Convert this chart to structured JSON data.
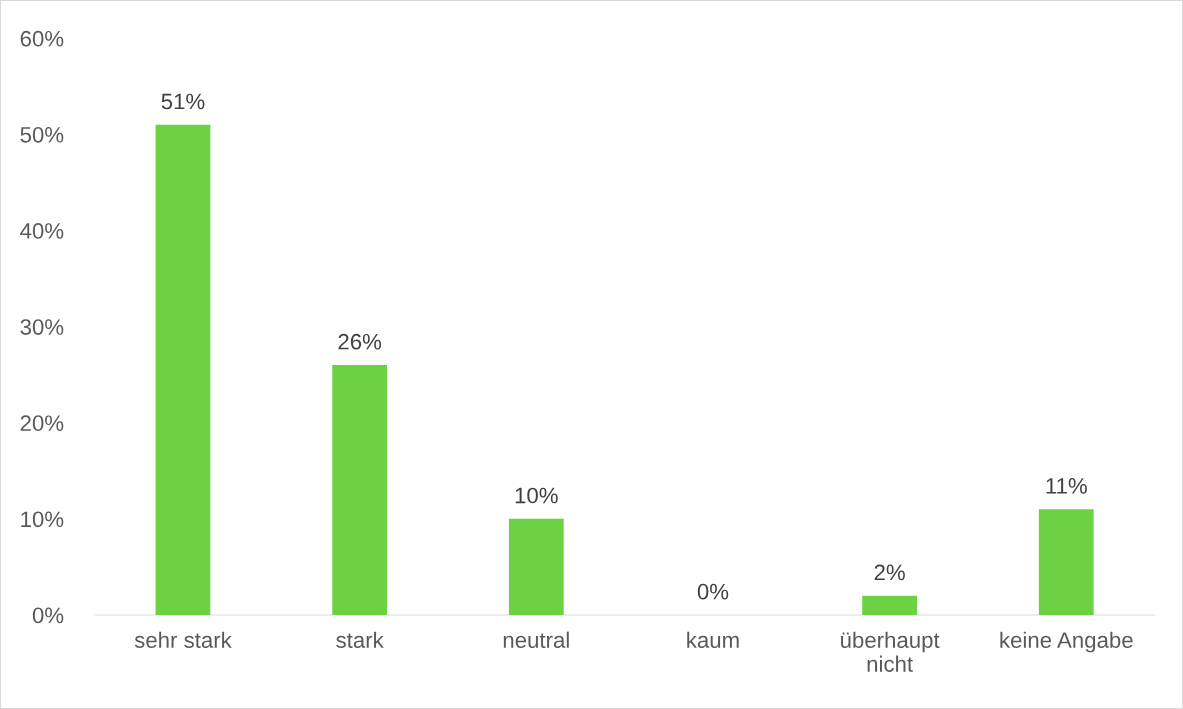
{
  "chart_data": {
    "type": "bar",
    "categories": [
      "sehr stark",
      "stark",
      "neutral",
      "kaum",
      "überhaupt\nnicht",
      "keine Angabe"
    ],
    "values": [
      51,
      26,
      10,
      0,
      2,
      11
    ],
    "color": "#6dd144",
    "data_labels": true,
    "value_labels": [
      "51%",
      "26%",
      "10%",
      "0%",
      "2%",
      "11%"
    ],
    "ylim": [
      0,
      60
    ],
    "yticks": [
      {
        "value": 0,
        "label": "0%"
      },
      {
        "value": 10,
        "label": "10%"
      },
      {
        "value": 20,
        "label": "20%"
      },
      {
        "value": 30,
        "label": "30%"
      },
      {
        "value": 40,
        "label": "40%"
      },
      {
        "value": 50,
        "label": "50%"
      },
      {
        "value": 60,
        "label": "60%"
      }
    ],
    "grid": false,
    "legend": false
  }
}
